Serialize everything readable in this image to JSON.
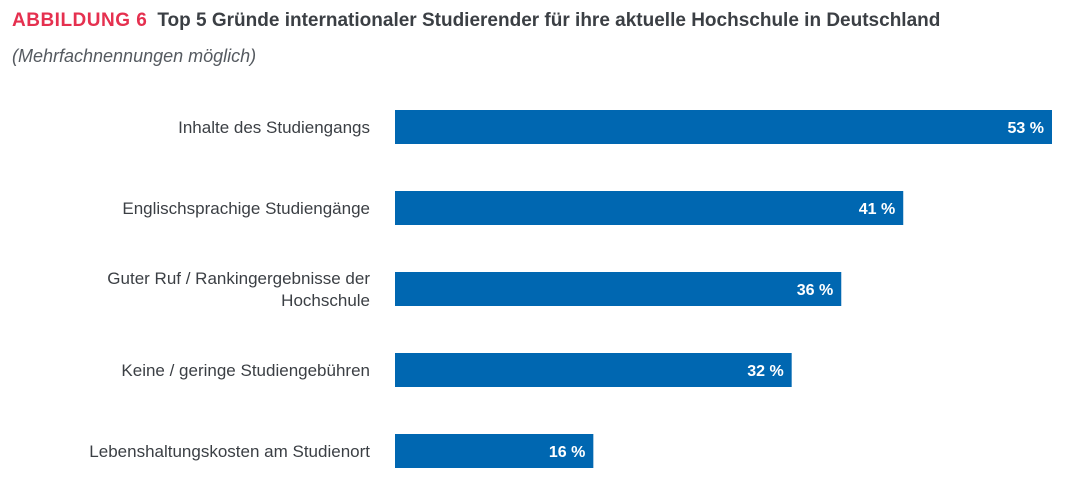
{
  "heading": {
    "figure_label": "ABBILDUNG 6",
    "title": "Top 5 Gründe internationaler Studierender für ihre aktuelle Hochschule in Deutschland",
    "subtitle": "(Mehrfachnennungen möglich)"
  },
  "chart_data": {
    "type": "bar",
    "orientation": "horizontal",
    "title": "Top 5 Gründe internationaler Studierender für ihre aktuelle Hochschule in Deutschland",
    "subtitle": "(Mehrfachnennungen möglich)",
    "categories": [
      [
        "Inhalte des Studiengangs"
      ],
      [
        "Englischsprachige Studiengänge"
      ],
      [
        "Guter Ruf / Rankingergebnisse der",
        "Hochschule"
      ],
      [
        "Keine / geringe Studiengebühren"
      ],
      [
        "Lebenshaltungskosten am Studienort"
      ]
    ],
    "values": [
      53,
      41,
      36,
      32,
      16
    ],
    "value_labels": [
      "53 %",
      "41 %",
      "36 %",
      "32 %",
      "16 %"
    ],
    "unit": "%",
    "xlim": [
      0,
      53
    ],
    "bar_color": "#0067b1",
    "grid": false
  }
}
